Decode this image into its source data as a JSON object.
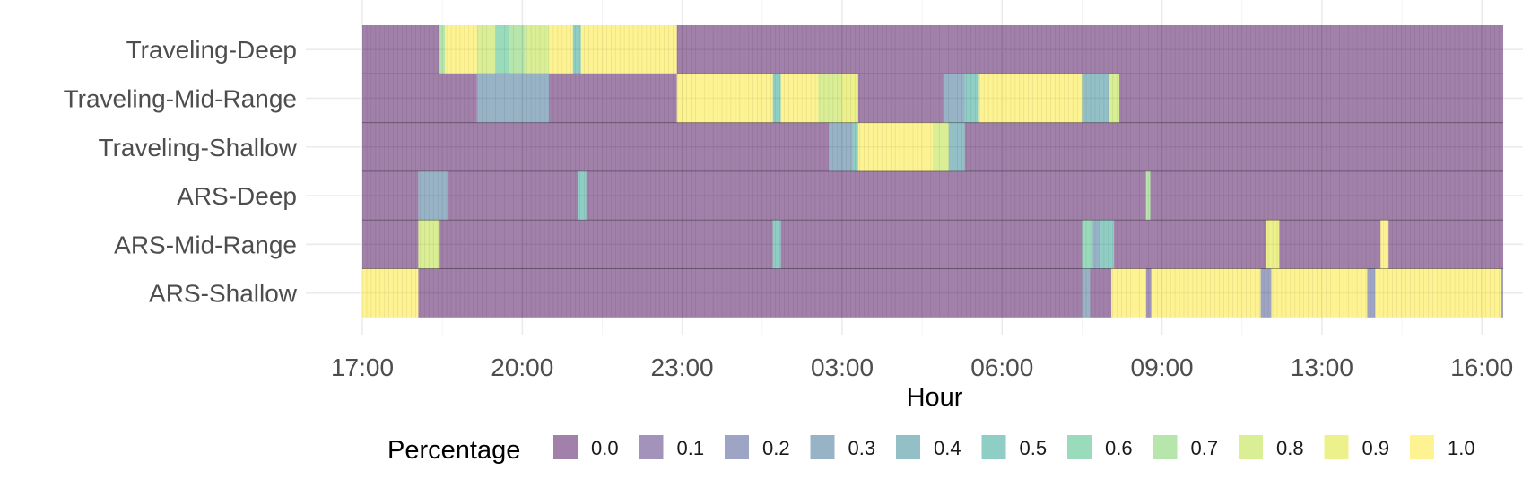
{
  "chart_data": {
    "type": "heatmap",
    "title": "",
    "xlabel": "Hour",
    "ylabel": "",
    "x_ticks": [
      {
        "label": "17:00",
        "hour": 0
      },
      {
        "label": "20:00",
        "hour": 3
      },
      {
        "label": "23:00",
        "hour": 6
      },
      {
        "label": "03:00",
        "hour": 9
      },
      {
        "label": "06:00",
        "hour": 12
      },
      {
        "label": "09:00",
        "hour": 15
      },
      {
        "label": "13:00",
        "hour": 18
      },
      {
        "label": "16:00",
        "hour": 21
      }
    ],
    "x_range_hours": [
      0,
      21.4
    ],
    "rows": [
      "Traveling-Deep",
      "Traveling-Mid-Range",
      "Traveling-Shallow",
      "ARS-Deep",
      "ARS-Mid-Range",
      "ARS-Shallow"
    ],
    "grid": true,
    "legend": {
      "title": "Percentage",
      "position": "bottom",
      "levels": [
        "0.0",
        "0.1",
        "0.2",
        "0.3",
        "0.4",
        "0.5",
        "0.6",
        "0.7",
        "0.8",
        "0.9",
        "1.0"
      ],
      "colors": [
        "#440154",
        "#482878",
        "#3e4989",
        "#31688e",
        "#26828e",
        "#1f9e89",
        "#35b779",
        "#6ece58",
        "#b5de2b",
        "#dce319",
        "#fde725"
      ]
    },
    "segments": {
      "Traveling-Deep": [
        [
          0,
          1.45,
          0.0
        ],
        [
          1.45,
          1.55,
          0.7
        ],
        [
          1.55,
          2.15,
          1.0
        ],
        [
          2.15,
          2.5,
          0.8
        ],
        [
          2.5,
          2.75,
          0.6
        ],
        [
          2.75,
          3.05,
          0.7
        ],
        [
          3.05,
          3.5,
          0.8
        ],
        [
          3.5,
          3.95,
          1.0
        ],
        [
          3.95,
          4.1,
          0.5
        ],
        [
          4.1,
          5.9,
          1.0
        ],
        [
          5.9,
          21.4,
          0.0
        ]
      ],
      "Traveling-Mid-Range": [
        [
          0,
          2.15,
          0.0
        ],
        [
          2.15,
          3.5,
          0.3
        ],
        [
          3.5,
          5.9,
          0.0
        ],
        [
          5.9,
          7.7,
          1.0
        ],
        [
          7.7,
          7.85,
          0.5
        ],
        [
          7.85,
          8.55,
          1.0
        ],
        [
          8.55,
          9.0,
          0.8
        ],
        [
          9.0,
          9.3,
          0.9
        ],
        [
          9.3,
          10.9,
          0.0
        ],
        [
          10.9,
          11.3,
          0.3
        ],
        [
          11.3,
          11.55,
          0.5
        ],
        [
          11.55,
          13.5,
          1.0
        ],
        [
          13.5,
          14.0,
          0.4
        ],
        [
          14.0,
          14.2,
          0.8
        ],
        [
          14.2,
          21.4,
          0.0
        ]
      ],
      "Traveling-Shallow": [
        [
          0,
          8.75,
          0.0
        ],
        [
          8.75,
          9.2,
          0.3
        ],
        [
          9.2,
          9.3,
          0.5
        ],
        [
          9.3,
          10.7,
          1.0
        ],
        [
          10.7,
          11.0,
          0.8
        ],
        [
          11.0,
          11.3,
          0.4
        ],
        [
          11.3,
          21.4,
          0.0
        ]
      ],
      "ARS-Deep": [
        [
          0,
          1.05,
          0.0
        ],
        [
          1.05,
          1.6,
          0.3
        ],
        [
          1.6,
          4.05,
          0.0
        ],
        [
          4.05,
          4.2,
          0.5
        ],
        [
          4.2,
          14.7,
          0.0
        ],
        [
          14.7,
          14.78,
          0.7
        ],
        [
          14.78,
          21.4,
          0.0
        ]
      ],
      "ARS-Mid-Range": [
        [
          0,
          1.05,
          0.0
        ],
        [
          1.05,
          1.45,
          0.8
        ],
        [
          1.45,
          7.7,
          0.0
        ],
        [
          7.7,
          7.85,
          0.5
        ],
        [
          7.85,
          13.5,
          0.0
        ],
        [
          13.5,
          13.7,
          0.6
        ],
        [
          13.7,
          13.85,
          0.3
        ],
        [
          13.85,
          14.1,
          0.5
        ],
        [
          14.1,
          16.95,
          0.0
        ],
        [
          16.95,
          17.2,
          0.9
        ],
        [
          17.2,
          19.1,
          0.0
        ],
        [
          19.1,
          19.25,
          1.0
        ],
        [
          19.25,
          21.4,
          0.0
        ]
      ],
      "ARS-Shallow": [
        [
          0,
          1.05,
          1.0
        ],
        [
          1.05,
          13.5,
          0.0
        ],
        [
          13.5,
          13.65,
          0.3
        ],
        [
          13.65,
          14.05,
          0.0
        ],
        [
          14.05,
          14.7,
          1.0
        ],
        [
          14.7,
          14.8,
          0.1
        ],
        [
          14.8,
          16.85,
          1.0
        ],
        [
          16.85,
          17.05,
          0.2
        ],
        [
          17.05,
          18.85,
          1.0
        ],
        [
          18.85,
          19.0,
          0.2
        ],
        [
          19.0,
          21.35,
          1.0
        ],
        [
          21.35,
          21.4,
          0.2
        ]
      ]
    }
  }
}
